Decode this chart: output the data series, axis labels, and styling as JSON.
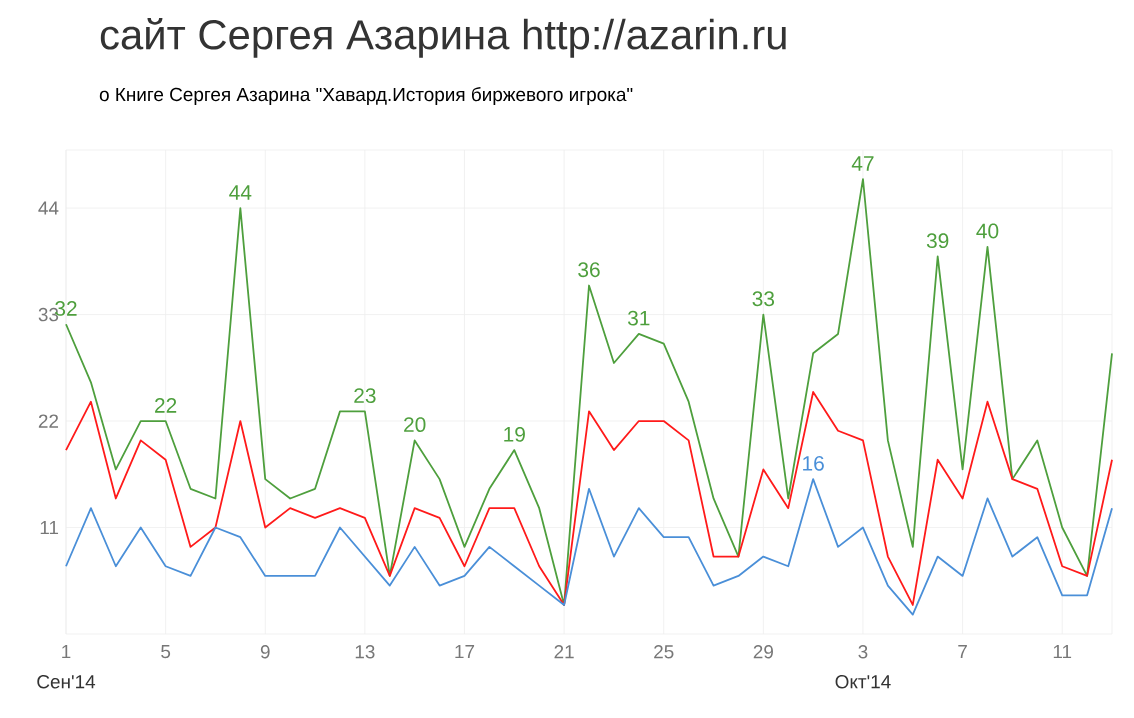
{
  "chart_data": {
    "type": "line",
    "title": "сайт Сергея Азарина http://azarin.ru",
    "subtitle": "о Книге Сергея Азарина \"Хавард.История биржевого игрока\"",
    "x": [
      "2014-09-01",
      "2014-09-02",
      "2014-09-03",
      "2014-09-04",
      "2014-09-05",
      "2014-09-06",
      "2014-09-07",
      "2014-09-08",
      "2014-09-09",
      "2014-09-10",
      "2014-09-11",
      "2014-09-12",
      "2014-09-13",
      "2014-09-14",
      "2014-09-15",
      "2014-09-16",
      "2014-09-17",
      "2014-09-18",
      "2014-09-19",
      "2014-09-20",
      "2014-09-21",
      "2014-09-22",
      "2014-09-23",
      "2014-09-24",
      "2014-09-25",
      "2014-09-26",
      "2014-09-27",
      "2014-09-28",
      "2014-09-29",
      "2014-09-30",
      "2014-10-01",
      "2014-10-02",
      "2014-10-03",
      "2014-10-04",
      "2014-10-05",
      "2014-10-06",
      "2014-10-07",
      "2014-10-08",
      "2014-10-09",
      "2014-10-10",
      "2014-10-11",
      "2014-10-12",
      "2014-10-13"
    ],
    "series": [
      {
        "color": "#4e9f3d",
        "values": [
          32,
          26,
          17,
          22,
          22,
          15,
          14,
          44,
          16,
          14,
          15,
          23,
          23,
          6,
          20,
          16,
          9,
          15,
          19,
          13,
          3,
          36,
          28,
          31,
          30,
          24,
          14,
          8,
          33,
          14,
          29,
          31,
          47,
          20,
          9,
          39,
          17,
          40,
          16,
          20,
          11,
          6,
          29
        ],
        "value_labels": [
          "32",
          null,
          null,
          null,
          "22",
          null,
          null,
          "44",
          null,
          null,
          null,
          null,
          "23",
          null,
          "20",
          null,
          null,
          null,
          "19",
          null,
          null,
          "36",
          null,
          "31",
          null,
          null,
          null,
          null,
          "33",
          null,
          null,
          null,
          "47",
          null,
          null,
          "39",
          null,
          "40",
          null,
          null,
          null,
          null,
          null
        ]
      },
      {
        "color": "#ff1a1a",
        "values": [
          19,
          24,
          14,
          20,
          18,
          9,
          11,
          22,
          11,
          13,
          12,
          13,
          12,
          6,
          13,
          12,
          7,
          13,
          13,
          7,
          3,
          23,
          19,
          22,
          22,
          20,
          8,
          8,
          17,
          13,
          25,
          21,
          20,
          8,
          3,
          18,
          14,
          24,
          16,
          15,
          7,
          6,
          18
        ]
      },
      {
        "color": "#4a8fd8",
        "values": [
          7,
          13,
          7,
          11,
          7,
          6,
          11,
          10,
          6,
          6,
          6,
          11,
          8,
          5,
          9,
          5,
          6,
          9,
          7,
          5,
          3,
          15,
          8,
          13,
          10,
          10,
          5,
          6,
          8,
          7,
          16,
          9,
          11,
          5,
          2,
          8,
          6,
          14,
          8,
          10,
          4,
          4,
          13
        ],
        "value_labels": [
          null,
          null,
          null,
          null,
          null,
          null,
          null,
          null,
          null,
          null,
          null,
          null,
          null,
          null,
          null,
          null,
          null,
          null,
          null,
          null,
          null,
          null,
          null,
          null,
          null,
          null,
          null,
          null,
          null,
          null,
          "16",
          null,
          null,
          null,
          null,
          null,
          null,
          null,
          null,
          null,
          null,
          null,
          null
        ]
      }
    ],
    "xlim": [
      "2014-09-01",
      "2014-10-13"
    ],
    "xticks": [
      {
        "value": "2014-09-01",
        "label": "1"
      },
      {
        "value": "2014-09-05",
        "label": "5"
      },
      {
        "value": "2014-09-09",
        "label": "9"
      },
      {
        "value": "2014-09-13",
        "label": "13"
      },
      {
        "value": "2014-09-17",
        "label": "17"
      },
      {
        "value": "2014-09-21",
        "label": "21"
      },
      {
        "value": "2014-09-25",
        "label": "25"
      },
      {
        "value": "2014-09-29",
        "label": "29"
      },
      {
        "value": "2014-10-03",
        "label": "3"
      },
      {
        "value": "2014-10-07",
        "label": "7"
      },
      {
        "value": "2014-10-11",
        "label": "11"
      }
    ],
    "ylim": [
      0,
      50
    ],
    "yticks": [
      11,
      22,
      33,
      44
    ],
    "annotations": [
      "Сен'14",
      "Окт'14"
    ],
    "grid": true,
    "line_style": "solid"
  }
}
